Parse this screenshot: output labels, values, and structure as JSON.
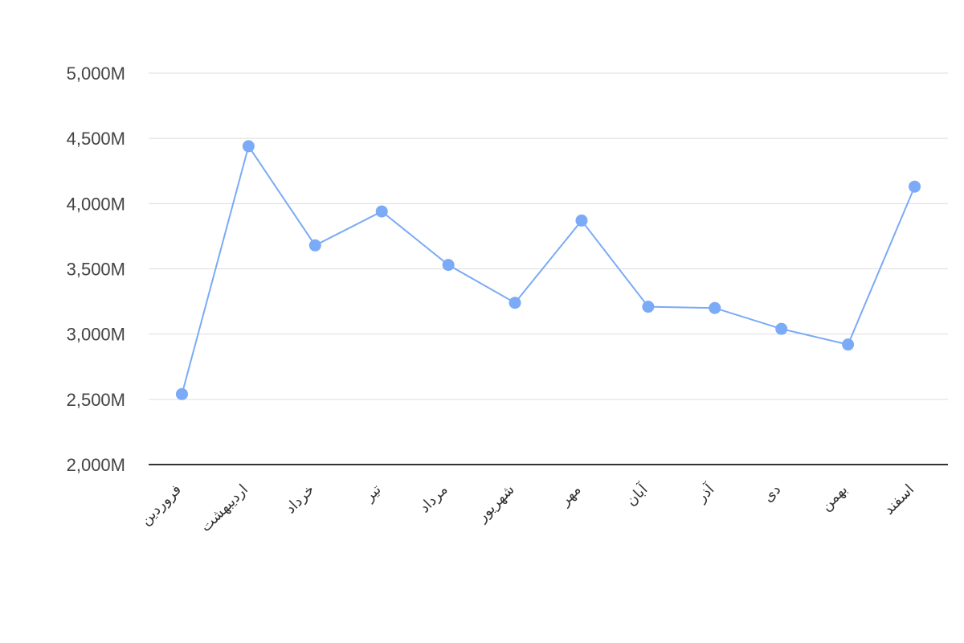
{
  "chart_data": {
    "type": "line",
    "categories": [
      "فروردین",
      "اردیبهشت",
      "خرداد",
      "تیر",
      "مرداد",
      "شهریور",
      "مهر",
      "آبان",
      "آذر",
      "دی",
      "بهمن",
      "اسفند"
    ],
    "series": [
      {
        "color": "#7baaf7",
        "values": [
          2540,
          4440,
          3680,
          3940,
          3530,
          3240,
          3870,
          3210,
          3200,
          3040,
          2920,
          4130
        ]
      }
    ],
    "ylim": [
      2000,
      5000
    ],
    "yticks": [
      {
        "value": 2000,
        "label": "2,000M"
      },
      {
        "value": 2500,
        "label": "2,500M"
      },
      {
        "value": 3000,
        "label": "3,000M"
      },
      {
        "value": 3500,
        "label": "3,500M"
      },
      {
        "value": 4000,
        "label": "4,000M"
      },
      {
        "value": 4500,
        "label": "4,500M"
      },
      {
        "value": 5000,
        "label": "5,000M"
      }
    ],
    "grid": true
  }
}
